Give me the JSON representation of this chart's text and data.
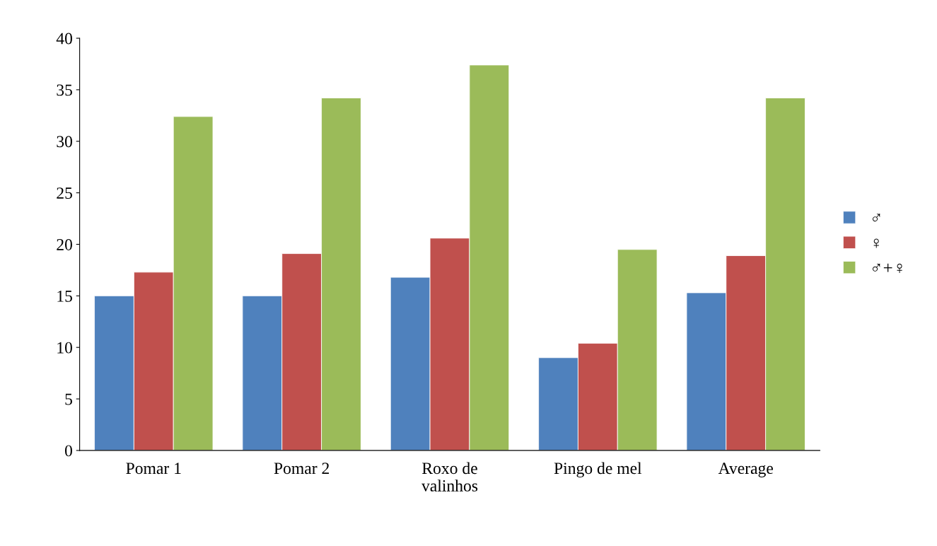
{
  "chart_data": {
    "type": "bar",
    "categories": [
      "Pomar 1",
      "Pomar 2",
      "Roxo de\nvalinhos",
      "Pingo de mel",
      "Average"
    ],
    "series": [
      {
        "name": "♂",
        "color": "#4f81bd",
        "values": [
          15.0,
          15.0,
          16.8,
          9.0,
          15.3
        ]
      },
      {
        "name": "♀",
        "color": "#c0504d",
        "values": [
          17.3,
          19.1,
          20.6,
          10.4,
          18.9
        ]
      },
      {
        "name": "♂+♀",
        "color": "#9bbb59",
        "values": [
          32.4,
          34.2,
          37.4,
          19.5,
          34.2
        ]
      }
    ],
    "ylim": [
      0,
      40
    ],
    "yticks": [
      0,
      5,
      10,
      15,
      20,
      25,
      30,
      35,
      40
    ],
    "grid": false,
    "legend": "right"
  }
}
